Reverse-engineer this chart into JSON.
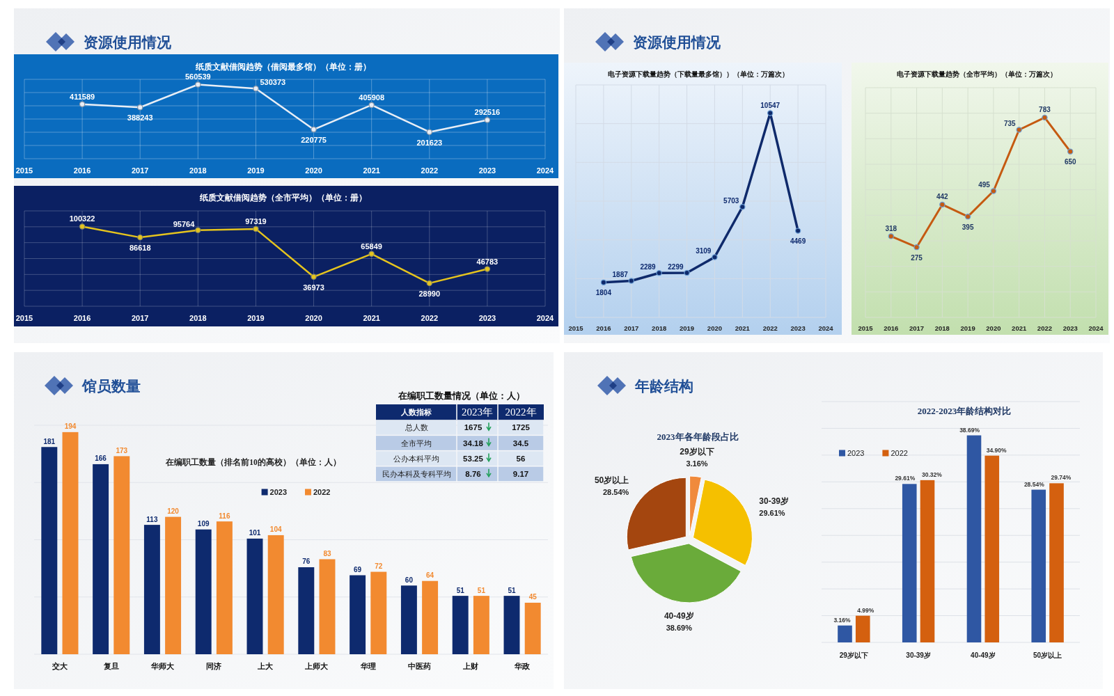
{
  "chart_data": [
    {
      "type": "line",
      "title": "资源使用情况",
      "subtitle": "纸质文献借阅趋势（借阅最多馆）（单位：册）",
      "x": [
        2016,
        2017,
        2018,
        2019,
        2020,
        2021,
        2022,
        2023
      ],
      "values": [
        411589,
        388243,
        560539,
        530373,
        220775,
        405908,
        201623,
        292516
      ],
      "color": "#e8eef6",
      "xlim": [
        2015,
        2024
      ],
      "xticks": [
        2015,
        2016,
        2017,
        2018,
        2019,
        2020,
        2021,
        2022,
        2023,
        2024
      ],
      "ylim": [
        0,
        600000
      ],
      "yticks": [
        {
          "value": 0,
          "label": null
        },
        {
          "value": 100000,
          "label": null
        },
        {
          "value": 200000,
          "label": null
        },
        {
          "value": 300000,
          "label": null
        },
        {
          "value": 400000,
          "label": null
        },
        {
          "value": 500000,
          "label": null
        },
        {
          "value": 600000,
          "label": null
        }
      ],
      "tick_labels": "x",
      "grid": true,
      "marker": "circle",
      "data_labels": true
    },
    {
      "type": "line",
      "title": "纸质文献借阅趋势（全市平均）（单位：册）",
      "x": [
        2016,
        2017,
        2018,
        2019,
        2020,
        2021,
        2022,
        2023
      ],
      "values": [
        100322,
        86618,
        95764,
        97319,
        36973,
        65849,
        28990,
        46783
      ],
      "color": "#e5c41e",
      "xlim": [
        2015,
        2024
      ],
      "xticks": [
        2015,
        2016,
        2017,
        2018,
        2019,
        2020,
        2021,
        2022,
        2023,
        2024
      ],
      "ylim": [
        0,
        120000
      ],
      "yticks": [
        {
          "value": 0,
          "label": null
        },
        {
          "value": 20000,
          "label": null
        },
        {
          "value": 40000,
          "label": null
        },
        {
          "value": 60000,
          "label": null
        },
        {
          "value": 80000,
          "label": null
        },
        {
          "value": 100000,
          "label": null
        },
        {
          "value": 120000,
          "label": null
        }
      ],
      "tick_labels": "x",
      "grid": true,
      "marker": "circle",
      "data_labels": true
    },
    {
      "type": "line",
      "title": "资源使用情况",
      "subtitle": "电子资源下载量趋势（下载量最多馆））（单位：万篇次）",
      "x": [
        2016,
        2017,
        2018,
        2019,
        2020,
        2021,
        2022,
        2023
      ],
      "values": [
        1804,
        1887,
        2289,
        2299,
        3109,
        5703,
        10547,
        4469
      ],
      "color": "#0f2a6b",
      "xlim": [
        2015,
        2024
      ],
      "xticks": [
        2015,
        2016,
        2017,
        2018,
        2019,
        2020,
        2021,
        2022,
        2023,
        2024
      ],
      "ylim": [
        0,
        12000
      ],
      "yticks": [
        {
          "value": 0,
          "label": null
        },
        {
          "value": 2000,
          "label": null
        },
        {
          "value": 4000,
          "label": null
        },
        {
          "value": 6000,
          "label": null
        },
        {
          "value": 8000,
          "label": null
        },
        {
          "value": 10000,
          "label": null
        },
        {
          "value": 12000,
          "label": null
        }
      ],
      "tick_labels": "x",
      "grid": true,
      "marker": "circle",
      "data_labels": true
    },
    {
      "type": "line",
      "title": "电子资源下载量趋势（全市平均）（单位：万篇次）",
      "x": [
        2016,
        2017,
        2018,
        2019,
        2020,
        2021,
        2022,
        2023
      ],
      "values": [
        318,
        275,
        442,
        395,
        495,
        735,
        783,
        650
      ],
      "color": "#c55a11",
      "xlim": [
        2015,
        2024
      ],
      "xticks": [
        2015,
        2016,
        2017,
        2018,
        2019,
        2020,
        2021,
        2022,
        2023,
        2024
      ],
      "ylim": [
        0,
        900
      ],
      "yticks": [
        {
          "value": 0,
          "label": null
        },
        {
          "value": 100,
          "label": null
        },
        {
          "value": 200,
          "label": null
        },
        {
          "value": 300,
          "label": null
        },
        {
          "value": 400,
          "label": null
        },
        {
          "value": 500,
          "label": null
        },
        {
          "value": 600,
          "label": null
        },
        {
          "value": 700,
          "label": null
        },
        {
          "value": 800,
          "label": null
        },
        {
          "value": 900,
          "label": null
        }
      ],
      "tick_labels": "x",
      "grid": true,
      "marker": "circle",
      "data_labels": true
    },
    {
      "type": "bar",
      "title": "馆员数量",
      "subtitle": "在编职工数量（排名前10的高校）（单位：人）",
      "categories": [
        "交大",
        "复旦",
        "华师大",
        "同济",
        "上大",
        "上师大",
        "华理",
        "中医药",
        "上财",
        "华政"
      ],
      "series": [
        {
          "name": "2023",
          "color": "#0e2a6e",
          "values": [
            181,
            166,
            113,
            109,
            101,
            76,
            69,
            60,
            51,
            51
          ]
        },
        {
          "name": "2022",
          "color": "#f28a30",
          "values": [
            194,
            173,
            120,
            116,
            104,
            83,
            72,
            64,
            51,
            45
          ]
        }
      ],
      "ylim": [
        0,
        200
      ],
      "yticks": [
        {
          "value": 0,
          "label": null
        },
        {
          "value": 50,
          "label": null
        },
        {
          "value": 100,
          "label": null
        },
        {
          "value": 150,
          "label": null
        },
        {
          "value": 200,
          "label": null
        }
      ],
      "tick_labels": "x",
      "grid": "y",
      "legend": "top",
      "data_labels": true
    },
    {
      "type": "other",
      "title": "在编职工数量情况（单位：人）",
      "categories": [
        "总人数",
        "全市平均",
        "公办本科平均",
        "民办本科及专科平均"
      ],
      "series": [
        {
          "name": "2023年",
          "colors": [
            "#dde7f3",
            "#b9cbe6",
            "#dde7f3",
            "#b9cbe6"
          ],
          "values": [
            1675,
            34.18,
            53.25,
            8.76
          ]
        },
        {
          "name": "2022年",
          "colors": [
            "#dde7f3",
            "#b9cbe6",
            "#dde7f3",
            "#b9cbe6"
          ],
          "values": [
            1725,
            34.5,
            56,
            9.17
          ]
        }
      ],
      "annotations": [
        "人数指标"
      ],
      "data_labels": true
    },
    {
      "type": "pie",
      "title": "年龄结构",
      "subtitle": "2023年各年龄段占比",
      "categories": [
        "29岁以下",
        "30-39岁",
        "40-49岁",
        "50岁以上"
      ],
      "values": [
        3.16,
        29.61,
        38.69,
        28.54
      ],
      "colors": [
        "#f08a3c",
        "#f5c000",
        "#6aab3a",
        "#a4460f"
      ],
      "value_labels": [
        "3.16%",
        "29.61%",
        "38.69%",
        "28.54%"
      ]
    },
    {
      "type": "bar",
      "title": "2022-2023年龄结构对比",
      "categories": [
        "29岁以下",
        "30-39岁",
        "40-49岁",
        "50岁以上"
      ],
      "series": [
        {
          "name": "2023",
          "color": "#2f57a3",
          "values": [
            3.16,
            29.61,
            38.69,
            28.54
          ],
          "value_labels": [
            "3.16%",
            "29.61%",
            "38.69%",
            "28.54%"
          ]
        },
        {
          "name": "2022",
          "color": "#d4600f",
          "values": [
            4.99,
            30.32,
            34.9,
            29.74
          ],
          "value_labels": [
            "4.99%",
            "30.32%",
            "34.90%",
            "29.74%"
          ]
        }
      ],
      "ylim": [
        0,
        45
      ],
      "yticks": [
        {
          "value": 0,
          "label": null
        },
        {
          "value": 5,
          "label": null
        },
        {
          "value": 10,
          "label": null
        },
        {
          "value": 15,
          "label": null
        },
        {
          "value": 20,
          "label": null
        },
        {
          "value": 25,
          "label": null
        },
        {
          "value": 30,
          "label": null
        },
        {
          "value": 35,
          "label": null
        },
        {
          "value": 40,
          "label": null
        },
        {
          "value": 45,
          "label": null
        }
      ],
      "tick_labels": "x",
      "grid": "y",
      "legend": "top left"
    }
  ]
}
